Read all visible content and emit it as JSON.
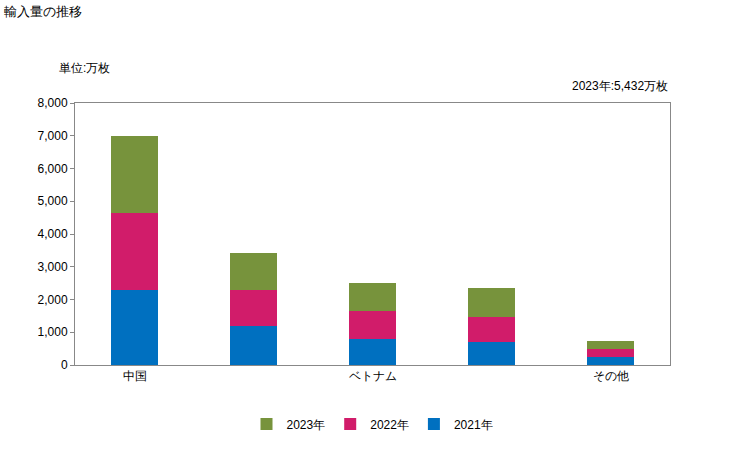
{
  "chart_data": {
    "type": "bar",
    "title": "輸入量の推移",
    "y_label": "単位:万枚",
    "annotations": [
      "2023年:5,432万枚"
    ],
    "stacked": true,
    "grid": false,
    "legend": "bottom",
    "categories": [
      "中国",
      null,
      "ベトナム",
      null,
      "その他"
    ],
    "series": [
      {
        "name": "2021年",
        "color": "#0070c0",
        "values": [
          2280,
          1190,
          780,
          700,
          230
        ]
      },
      {
        "name": "2022年",
        "color": "#d11c6a",
        "values": [
          2360,
          1110,
          870,
          780,
          270
        ]
      },
      {
        "name": "2023年",
        "color": "#77933c",
        "values": [
          2362,
          1120,
          850,
          880,
          220
        ]
      }
    ],
    "ylim": [
      0,
      8000
    ],
    "yticks": [
      0,
      {
        "value": 1000,
        "label": "1,000"
      },
      {
        "value": 2000,
        "label": "2,000"
      },
      {
        "value": 3000,
        "label": "3,000"
      },
      {
        "value": 4000,
        "label": "4,000"
      },
      {
        "value": 5000,
        "label": "5,000"
      },
      {
        "value": 6000,
        "label": "6,000"
      },
      {
        "value": 7000,
        "label": "7,000"
      },
      {
        "value": 8000,
        "label": "8,000"
      }
    ]
  }
}
